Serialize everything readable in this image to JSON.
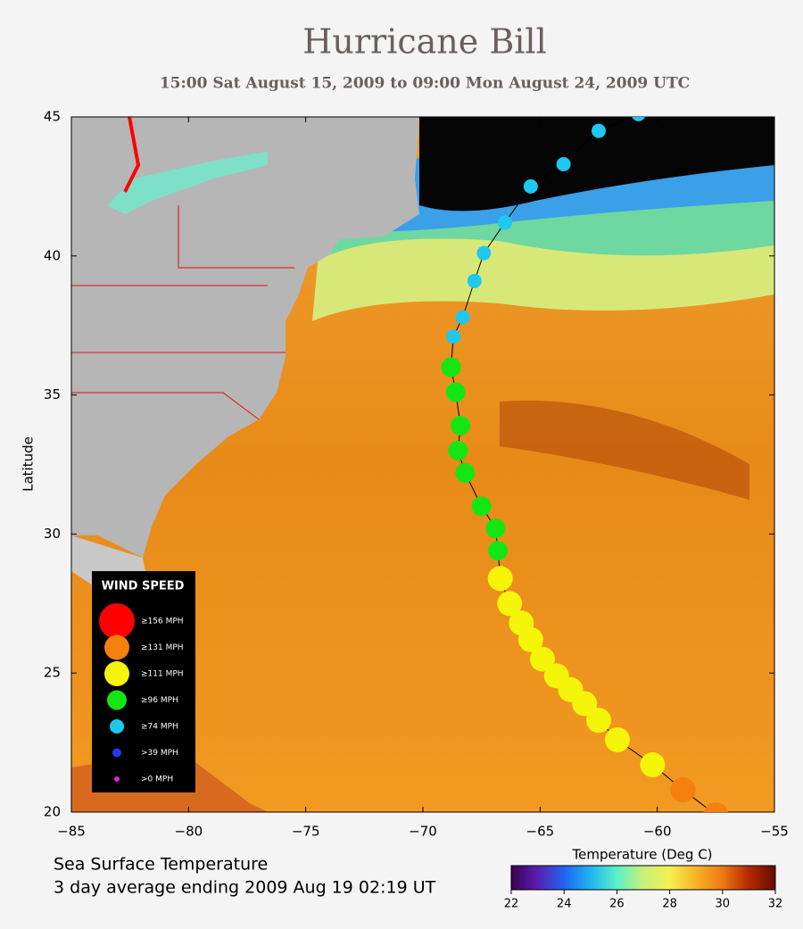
{
  "chart_data": {
    "type": "scatter",
    "title": "Hurricane Bill",
    "subtitle": "15:00 Sat August 15, 2009 to 09:00 Mon August 24, 2009  UTC",
    "ylabel": "Latitude",
    "xlim": [
      -85,
      -55
    ],
    "ylim": [
      20,
      45
    ],
    "xticks": [
      {
        "value": -85,
        "label": "−85"
      },
      {
        "value": -80,
        "label": "−80"
      },
      {
        "value": -75,
        "label": "−75"
      },
      {
        "value": -70,
        "label": "−70"
      },
      {
        "value": -65,
        "label": "−65"
      },
      {
        "value": -60,
        "label": "−60"
      },
      {
        "value": -55,
        "label": "−55"
      }
    ],
    "yticks": [
      20,
      25,
      30,
      35,
      40,
      45
    ],
    "legend_title": "WIND SPEED",
    "legend_loc": "lower left",
    "series": [
      {
        "name": "≥156 MPH",
        "color": "#ff0000",
        "x": [],
        "y": []
      },
      {
        "name": "≥131 MPH",
        "color": "#f57f0f",
        "x": [
          -57.5,
          -58.9
        ],
        "y": [
          19.9,
          20.8
        ]
      },
      {
        "name": "≥111 MPH",
        "color": "#f5f50a",
        "x": [
          -60.2,
          -61.7,
          -62.5,
          -63.1,
          -63.7,
          -64.3,
          -64.9,
          -65.4,
          -65.8,
          -66.3,
          -66.7
        ],
        "y": [
          21.7,
          22.6,
          23.3,
          23.9,
          24.4,
          24.9,
          25.5,
          26.2,
          26.8,
          27.5,
          28.4
        ]
      },
      {
        "name": "≥96 MPH",
        "color": "#14e614",
        "x": [
          -66.8,
          -66.9,
          -67.5,
          -68.2,
          -68.5,
          -68.4,
          -68.6,
          -68.8
        ],
        "y": [
          29.4,
          30.2,
          31.0,
          32.2,
          33.0,
          33.9,
          35.1,
          36.0
        ]
      },
      {
        "name": "≥74 MPH",
        "color": "#1ec8f0",
        "x": [
          -68.7,
          -68.3,
          -67.8,
          -67.4,
          -66.5,
          -65.4,
          -64.0,
          -62.5,
          -60.8
        ],
        "y": [
          37.1,
          37.8,
          39.1,
          40.1,
          41.2,
          42.5,
          43.3,
          44.5,
          45.1
        ]
      },
      {
        "name": ">39 MPH",
        "color": "#1e3cf0",
        "x": [],
        "y": []
      },
      {
        "name": ">0 MPH",
        "color": "#e61ee6",
        "x": [],
        "y": []
      }
    ],
    "notes": [
      "Sea Surface Temperature",
      "3 day average ending 2009 Aug 19 02:19 UT"
    ],
    "colorbar": {
      "label": "Temperature (Deg C)",
      "lim": [
        22,
        32
      ],
      "ticks": [
        22,
        24,
        26,
        28,
        30,
        32
      ],
      "colors": [
        "#3c0050",
        "#5a1eb4",
        "#1e64f0",
        "#1eb4f0",
        "#5af0c8",
        "#c8f078",
        "#f5f050",
        "#f5b428",
        "#f07814",
        "#b42800",
        "#640a00"
      ]
    }
  }
}
